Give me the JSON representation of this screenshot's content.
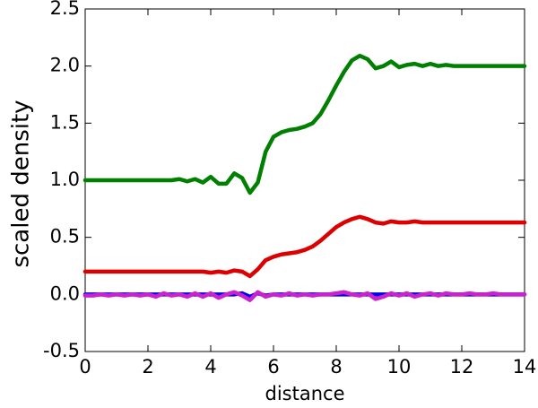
{
  "chart_data": {
    "type": "line",
    "xlabel": "distance",
    "ylabel": "scaled density",
    "x": [
      0,
      0.25,
      0.5,
      0.75,
      1,
      1.25,
      1.5,
      1.75,
      2,
      2.25,
      2.5,
      2.75,
      3,
      3.25,
      3.5,
      3.75,
      4,
      4.25,
      4.5,
      4.75,
      5,
      5.25,
      5.5,
      5.75,
      6,
      6.25,
      6.5,
      6.75,
      7,
      7.25,
      7.5,
      7.75,
      8,
      8.25,
      8.5,
      8.75,
      9,
      9.25,
      9.5,
      9.75,
      10,
      10.25,
      10.5,
      10.75,
      11,
      11.25,
      11.5,
      11.75,
      12,
      12.25,
      12.5,
      12.75,
      13,
      13.25,
      13.5,
      13.75,
      14
    ],
    "series": [
      {
        "color": "#008000",
        "values": [
          1.0,
          1.0,
          1.0,
          1.0,
          1.0,
          1.0,
          1.0,
          1.0,
          1.0,
          1.0,
          1.0,
          1.0,
          1.01,
          0.99,
          1.01,
          0.98,
          1.03,
          0.97,
          0.97,
          1.06,
          1.02,
          0.89,
          0.98,
          1.25,
          1.38,
          1.42,
          1.44,
          1.45,
          1.47,
          1.5,
          1.58,
          1.7,
          1.83,
          1.95,
          2.05,
          2.09,
          2.06,
          1.98,
          2.0,
          2.04,
          1.99,
          2.01,
          2.02,
          2.0,
          2.02,
          2.0,
          2.01,
          2.0,
          2.0,
          2.0,
          2.0,
          2.0,
          2.0,
          2.0,
          2.0,
          2.0,
          2.0
        ]
      },
      {
        "color": "#dd0000",
        "values": [
          0.2,
          0.2,
          0.2,
          0.2,
          0.2,
          0.2,
          0.2,
          0.2,
          0.2,
          0.2,
          0.2,
          0.2,
          0.2,
          0.2,
          0.2,
          0.2,
          0.19,
          0.2,
          0.19,
          0.21,
          0.2,
          0.16,
          0.22,
          0.3,
          0.33,
          0.35,
          0.36,
          0.37,
          0.39,
          0.42,
          0.47,
          0.53,
          0.59,
          0.63,
          0.66,
          0.68,
          0.66,
          0.63,
          0.62,
          0.64,
          0.63,
          0.63,
          0.64,
          0.63,
          0.63,
          0.63,
          0.63,
          0.63,
          0.63,
          0.63,
          0.63,
          0.63,
          0.63,
          0.63,
          0.63,
          0.63,
          0.63
        ]
      },
      {
        "color": "#0000ee",
        "values": [
          0,
          0,
          0,
          0,
          0,
          0,
          0,
          0,
          0,
          0,
          0,
          0,
          0,
          0,
          0,
          0,
          0,
          0,
          0,
          0,
          0.01,
          -0.02,
          0.01,
          -0.01,
          0,
          0,
          0,
          0,
          0,
          0,
          0,
          0,
          0,
          0,
          0,
          0,
          0,
          0,
          0,
          0,
          0,
          0,
          0,
          0,
          0,
          0,
          0,
          0,
          0,
          0,
          0,
          0,
          0,
          0,
          0,
          0,
          0
        ]
      },
      {
        "color": "#cc22cc",
        "values": [
          -0.01,
          -0.01,
          0,
          -0.01,
          0,
          -0.01,
          0,
          -0.01,
          0,
          -0.02,
          0.01,
          -0.01,
          0,
          -0.02,
          0.01,
          -0.02,
          0.01,
          -0.03,
          0,
          0.02,
          -0.01,
          -0.05,
          0.02,
          -0.02,
          0,
          -0.01,
          0.01,
          -0.01,
          0,
          -0.01,
          0,
          0,
          0.01,
          0.02,
          0,
          -0.01,
          0.01,
          -0.04,
          -0.02,
          0.01,
          -0.01,
          0.01,
          -0.02,
          0,
          0.01,
          -0.01,
          0.01,
          0,
          0,
          0.01,
          0,
          0,
          0.01,
          0,
          0,
          0,
          0
        ]
      }
    ],
    "xlim": [
      0,
      14
    ],
    "xticks": [
      0,
      2,
      4,
      6,
      8,
      10,
      12,
      14
    ],
    "ylim": [
      -0.5,
      2.5
    ],
    "yticks": [
      {
        "value": -0.5,
        "label": "-0.5"
      },
      {
        "value": 0,
        "label": "0.0"
      },
      {
        "value": 0.5,
        "label": "0.5"
      },
      {
        "value": 1,
        "label": "1.0"
      },
      {
        "value": 1.5,
        "label": "1.5"
      },
      {
        "value": 2,
        "label": "2.0"
      },
      {
        "value": 2.5,
        "label": "2.5"
      }
    ],
    "grid": false
  }
}
